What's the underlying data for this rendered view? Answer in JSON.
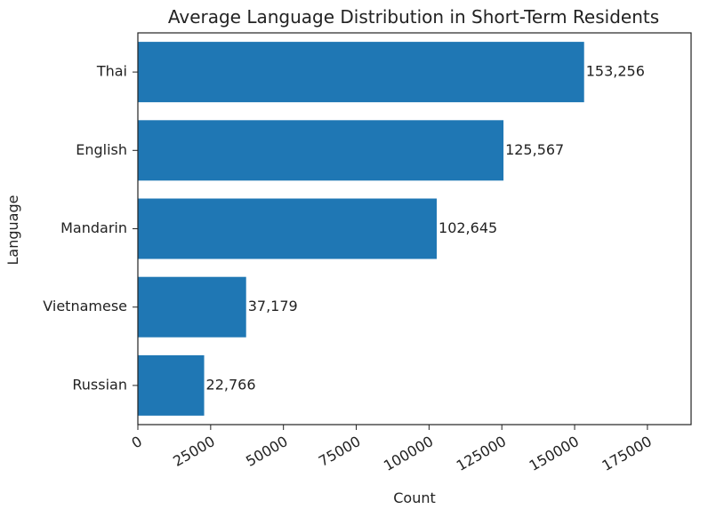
{
  "chart_data": {
    "type": "bar",
    "orientation": "horizontal",
    "title": "Average Language Distribution in Short-Term Residents",
    "xlabel": "Count",
    "ylabel": "Language",
    "categories": [
      "Thai",
      "English",
      "Mandarin",
      "Vietnamese",
      "Russian"
    ],
    "values": [
      153256,
      125567,
      102645,
      37179,
      22766
    ],
    "value_labels": [
      "153,256",
      "125,567",
      "102,645",
      "37,179",
      "22,766"
    ],
    "xlim": [
      0,
      190000
    ],
    "xticks": [
      0,
      25000,
      50000,
      75000,
      100000,
      125000,
      150000,
      175000
    ],
    "xtick_labels": [
      "0",
      "25000",
      "50000",
      "75000",
      "100000",
      "125000",
      "150000",
      "175000"
    ],
    "grid": false,
    "bar_color": "#1f77b4"
  }
}
